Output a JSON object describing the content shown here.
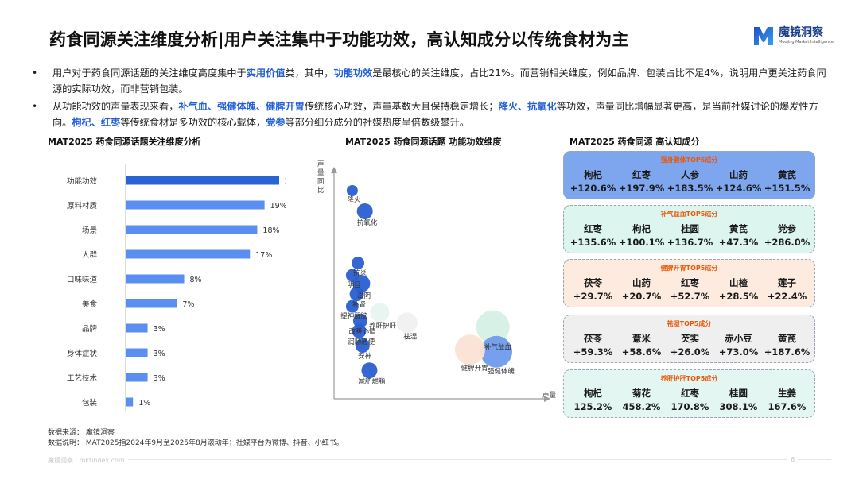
{
  "header": {
    "title": "药食同源关注维度分析|用户关注集中于功能功效，高认知成分以传统食材为主",
    "logo_name": "魔镜洞察",
    "logo_tagline": "Moojing Market Intelligence"
  },
  "bullets": [
    {
      "marker": "•",
      "segments": [
        {
          "text": "用户对于药食同源话题的关注维度高度集中于",
          "hl": false
        },
        {
          "text": "实用价值",
          "hl": true
        },
        {
          "text": "类，其中，",
          "hl": false
        },
        {
          "text": "功能功效",
          "hl": true
        },
        {
          "text": "是最核心的关注维度，占比21%。而营销相关维度，例如品牌、包装占比不足4%，说明用户更关注药食同源的实际功效，而非营销包装。",
          "hl": false
        }
      ]
    },
    {
      "marker": "•",
      "segments": [
        {
          "text": "从功能功效的声量表现来看，",
          "hl": false
        },
        {
          "text": "补气血、强健体魄、健脾开胃",
          "hl": true
        },
        {
          "text": "传统核心功效，声量基数大且保持稳定增长；",
          "hl": false
        },
        {
          "text": "降火、抗氧化",
          "hl": true
        },
        {
          "text": "等功效，声量同比增幅显著更高，是当前社媒讨论的爆发性方向。",
          "hl": false
        },
        {
          "text": "枸杞、红枣",
          "hl": true
        },
        {
          "text": "等传统食材是多功效的核心载体，",
          "hl": false
        },
        {
          "text": "党参",
          "hl": true
        },
        {
          "text": "等部分细分成分的社媒热度呈倍数级攀升。",
          "hl": false
        }
      ]
    }
  ],
  "sections": {
    "bar_title": "MAT2025 药食同源话题关注维度分析",
    "bubble_title": "MAT2025 药食同源话题 功能功效维度",
    "cards_title": "MAT2025 药食同源 高认知成分"
  },
  "chart_data": [
    {
      "type": "bar",
      "orientation": "horizontal",
      "title": "MAT2025 药食同源话题关注维度分析",
      "categories": [
        "功能功效",
        "原料材质",
        "场景",
        "人群",
        "口味味道",
        "美食",
        "品牌",
        "身体症状",
        "工艺技术",
        "包装"
      ],
      "values": [
        21,
        19,
        18,
        17,
        8,
        7,
        3,
        3,
        3,
        1
      ],
      "value_labels": [
        "21%",
        "19%",
        "18%",
        "17%",
        "8%",
        "7%",
        "3%",
        "3%",
        "3%",
        "1%"
      ],
      "unit": "%",
      "xlim": [
        0,
        21
      ],
      "colors": {
        "highlight": "#2a63d4",
        "default": "#5a8ef0"
      }
    },
    {
      "type": "scatter",
      "subtype": "bubble",
      "title": "MAT2025 药食同源话题 功能功效维度",
      "xlabel": "声量",
      "ylabel": "声量同比",
      "axis_ticks": false,
      "grid": false,
      "points": [
        {
          "label": "降火",
          "x": 0.2,
          "y": 95,
          "size": 7,
          "color": "#2a5fd0"
        },
        {
          "label": "抗氧化",
          "x": 1.3,
          "y": 85,
          "size": 10,
          "color": "#2a5fd0"
        },
        {
          "label": "抗炎",
          "x": 0.7,
          "y": 60,
          "size": 8,
          "color": "#2a5fd0"
        },
        {
          "label": "明目",
          "x": 0.2,
          "y": 54,
          "size": 8,
          "color": "#2a5fd0"
        },
        {
          "label": "滋阴",
          "x": 1.0,
          "y": 50,
          "size": 11,
          "color": "#2a5fd0"
        },
        {
          "label": "补肾",
          "x": 0.6,
          "y": 45,
          "size": 9,
          "color": "#2a5fd0"
        },
        {
          "label": "提神醒脑",
          "x": 0.2,
          "y": 39,
          "size": 8,
          "color": "#2a5fd0"
        },
        {
          "label": "养肝护肝",
          "x": 2.6,
          "y": 36,
          "size": 12,
          "color": "#e8f4ef"
        },
        {
          "label": "改善心情",
          "x": 0.9,
          "y": 32,
          "size": 9,
          "color": "#2a5fd0"
        },
        {
          "label": "祛湿",
          "x": 5.0,
          "y": 31,
          "size": 13,
          "color": "#f0f0f0"
        },
        {
          "label": "润肠通便",
          "x": 0.8,
          "y": 27,
          "size": 9,
          "color": "#2a5fd0"
        },
        {
          "label": "补气益血",
          "x": 12.5,
          "y": 29,
          "size": 21,
          "color": "#d6f0e6"
        },
        {
          "label": "安神",
          "x": 1.1,
          "y": 20,
          "size": 9,
          "color": "#2a5fd0"
        },
        {
          "label": "健脾开胃",
          "x": 10.5,
          "y": 18,
          "size": 19,
          "color": "#fbe3d4"
        },
        {
          "label": "强健体魄",
          "x": 12.8,
          "y": 17,
          "size": 20,
          "color": "#6f9bec"
        },
        {
          "label": "减肥燃脂",
          "x": 1.7,
          "y": 8,
          "size": 10,
          "color": "#2a5fd0"
        }
      ]
    },
    {
      "type": "table",
      "title": "MAT2025 药食同源 高认知成分",
      "groups": [
        {
          "title": "强身健体TOP5成分",
          "bg": "#7ea6ef",
          "title_color": "#e8590c",
          "items": [
            "枸杞",
            "红枣",
            "人参",
            "山药",
            "黄芪"
          ],
          "values": [
            "+120.6%",
            "+197.9%",
            "+183.5%",
            "+124.6%",
            "+151.5%"
          ]
        },
        {
          "title": "补气益血TOP5成分",
          "bg": "#dcf5ef",
          "title_color": "#e8590c",
          "items": [
            "红枣",
            "枸杞",
            "桂圆",
            "黄芪",
            "党参"
          ],
          "values": [
            "+135.6%",
            "+100.1%",
            "+136.7%",
            "+47.3%",
            "+286.0%"
          ]
        },
        {
          "title": "健脾开胃TOP5成分",
          "bg": "#fdebdf",
          "title_color": "#e8590c",
          "items": [
            "茯苓",
            "山药",
            "红枣",
            "山楂",
            "莲子"
          ],
          "values": [
            "+29.7%",
            "+20.7%",
            "+52.7%",
            "+28.5%",
            "+22.4%"
          ]
        },
        {
          "title": "祛湿TOP5成分",
          "bg": "#efefef",
          "title_color": "#e8590c",
          "items": [
            "茯苓",
            "薏米",
            "芡实",
            "赤小豆",
            "黄芪"
          ],
          "values": [
            "+59.3%",
            "+58.6%",
            "+26.0%",
            "+73.0%",
            "+187.6%"
          ]
        },
        {
          "title": "养肝护肝TOP5成分",
          "bg": "#e3f6f2",
          "title_color": "#e8590c",
          "items": [
            "枸杞",
            "菊花",
            "红枣",
            "桂圆",
            "生姜"
          ],
          "values": [
            "125.2%",
            "458.2%",
            "170.8%",
            "308.1%",
            "167.6%"
          ]
        }
      ]
    }
  ],
  "footer": {
    "source": "数据来源：  魔镜洞察",
    "note": "数据说明：   MAT2025指2024年9月至2025年8月滚动年；社媒平台为微博、抖音、小红书。",
    "bottom_left": "魔镜洞察 · mktindex.com",
    "page_number": "6"
  }
}
